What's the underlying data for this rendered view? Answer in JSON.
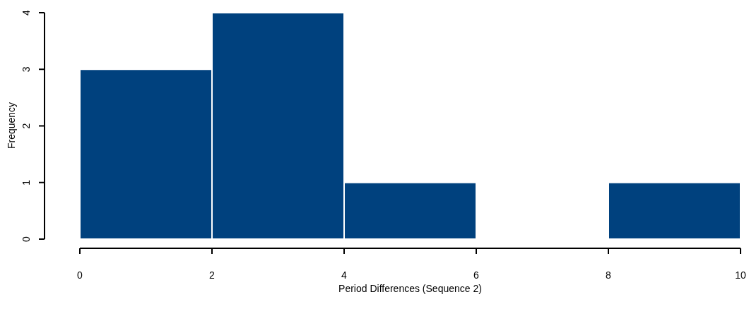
{
  "chart_data": {
    "type": "histogram",
    "xlabel": "Period Differences (Sequence 2)",
    "ylabel": "Frequency",
    "bins": [
      0,
      2,
      4,
      6,
      8,
      10
    ],
    "values": [
      3,
      4,
      1,
      0,
      1
    ],
    "color": "#00417e",
    "xlim": [
      0,
      10
    ],
    "xticks": [
      0,
      2,
      4,
      6,
      8,
      10
    ],
    "ylim": [
      0,
      4
    ],
    "yticks": [
      0,
      1,
      2,
      3,
      4
    ]
  }
}
